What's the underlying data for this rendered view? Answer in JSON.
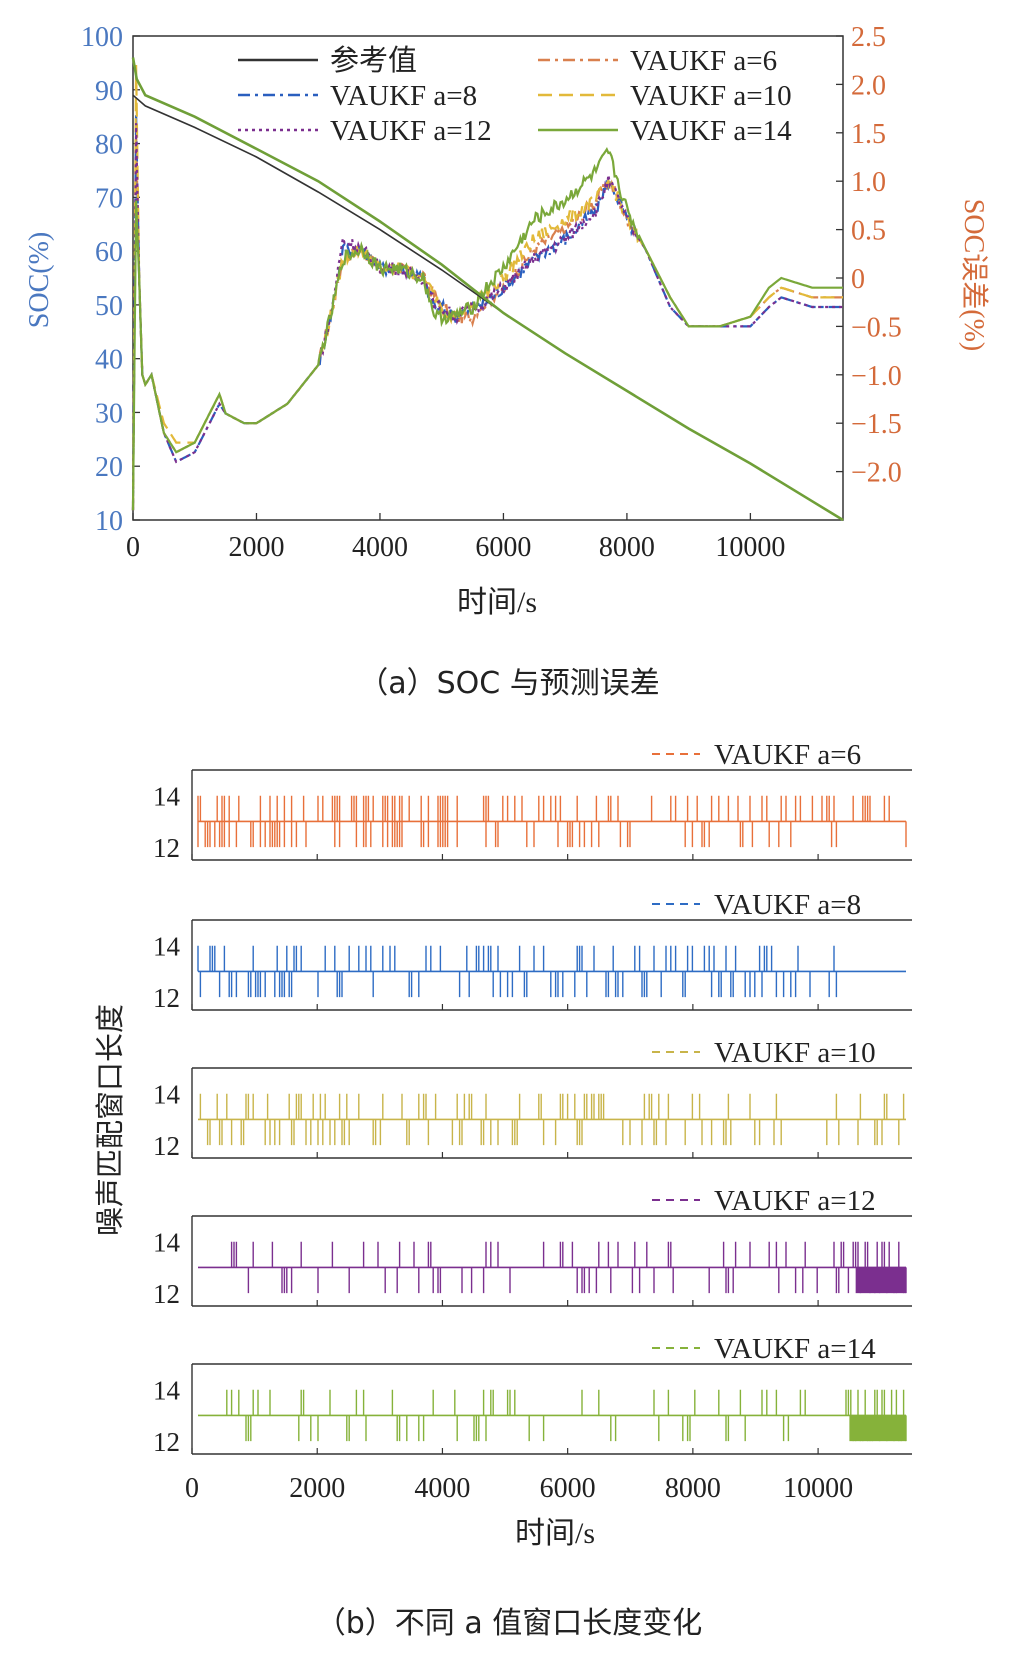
{
  "figure": {
    "caption_a": "（a）SOC 与预测误差",
    "caption_b": "（b）不同 a 值窗口长度变化"
  },
  "chart_data": [
    {
      "type": "line",
      "xlabel": "时间/s",
      "ylabel": "SOC(%)",
      "y2label": "SOC误差(%)",
      "xlim": [
        0,
        11500
      ],
      "ylim": [
        10,
        100
      ],
      "y2lim": [
        -2.5,
        2.5
      ],
      "xticks": [
        "0",
        "2000",
        "4000",
        "6000",
        "8000",
        "10000"
      ],
      "yticks": [
        "10",
        "20",
        "30",
        "40",
        "50",
        "60",
        "70",
        "80",
        "90",
        "100"
      ],
      "y2ticks": [
        "-2.0",
        "-1.5",
        "-1.0",
        "-0.5",
        "0",
        "0.5",
        "1.0",
        "1.5",
        "2.0",
        "2.5"
      ],
      "legend": [
        {
          "label": "参考值",
          "color": "#333333",
          "dash": "solid"
        },
        {
          "label": "VAUKF a=6",
          "color": "#d9804e",
          "dash": "dashdot"
        },
        {
          "label": "VAUKF a=8",
          "color": "#2a5fbf",
          "dash": "dashdot"
        },
        {
          "label": "VAUKF a=10",
          "color": "#e2b93a",
          "dash": "dashed"
        },
        {
          "label": "VAUKF a=12",
          "color": "#7b2f8f",
          "dash": "dotted"
        },
        {
          "label": "VAUKF a=14",
          "color": "#7aa83a",
          "dash": "solid"
        }
      ],
      "soc_series": {
        "reference": {
          "x": [
            0,
            200,
            1000,
            2000,
            3000,
            4000,
            5000,
            6000,
            7000,
            8000,
            9000,
            10000,
            11000,
            11500
          ],
          "y": [
            89,
            87,
            83,
            77.5,
            71,
            64,
            56.5,
            48.5,
            41,
            34,
            27,
            20.5,
            13.5,
            10
          ]
        },
        "estimate": {
          "x": [
            0,
            60,
            200,
            1000,
            2000,
            3000,
            4000,
            5000,
            6000,
            7000,
            8000,
            9000,
            10000,
            11000,
            11500
          ],
          "y": [
            96,
            92,
            89,
            85,
            79,
            73,
            65.5,
            57.5,
            48.5,
            41,
            34,
            27,
            20.5,
            13.5,
            10
          ]
        }
      },
      "error_series": [
        {
          "name": "VAUKF a=6",
          "x": [
            0,
            50,
            100,
            150,
            200,
            300,
            500,
            700,
            1000,
            1400,
            1500,
            1800,
            2000,
            2500,
            3000,
            3200,
            3400,
            3700,
            4000,
            4300,
            4700,
            4900,
            5000,
            5200,
            5500,
            5600,
            6000,
            6500,
            7000,
            7500,
            7700,
            7800,
            8000,
            8300,
            8700,
            9000,
            9500,
            10000,
            10300,
            10500,
            11000,
            11500
          ],
          "y": [
            -2.4,
            1.5,
            0,
            -1.0,
            -1.1,
            -1.0,
            -1.6,
            -1.8,
            -1.7,
            -1.2,
            -1.4,
            -1.5,
            -1.5,
            -1.3,
            -0.9,
            -0.4,
            0.2,
            0.3,
            0.1,
            0.1,
            0,
            -0.2,
            -0.3,
            -0.4,
            -0.4,
            -0.3,
            -0.1,
            0.3,
            0.5,
            0.8,
            1.0,
            0.9,
            0.6,
            0.3,
            -0.2,
            -0.5,
            -0.5,
            -0.4,
            -0.2,
            -0.1,
            -0.2,
            -0.2
          ]
        },
        {
          "name": "VAUKF a=8",
          "x": [
            0,
            50,
            100,
            150,
            200,
            300,
            500,
            700,
            1000,
            1400,
            1500,
            1800,
            2000,
            2500,
            3000,
            3200,
            3400,
            3700,
            4000,
            4300,
            4700,
            4900,
            5000,
            5200,
            5500,
            5600,
            6000,
            6500,
            7000,
            7500,
            7700,
            7800,
            8000,
            8300,
            8700,
            9000,
            9500,
            10000,
            10300,
            10500,
            11000,
            11500
          ],
          "y": [
            -2.4,
            1.7,
            0,
            -1.0,
            -1.1,
            -1.0,
            -1.6,
            -1.9,
            -1.8,
            -1.3,
            -1.4,
            -1.5,
            -1.5,
            -1.3,
            -0.9,
            -0.4,
            0.3,
            0.3,
            0.1,
            0.1,
            0,
            -0.3,
            -0.3,
            -0.4,
            -0.3,
            -0.3,
            -0.1,
            0.2,
            0.4,
            0.7,
            1.0,
            0.9,
            0.6,
            0.3,
            -0.3,
            -0.5,
            -0.5,
            -0.5,
            -0.3,
            -0.2,
            -0.3,
            -0.3
          ]
        },
        {
          "name": "VAUKF a=10",
          "x": [
            0,
            50,
            100,
            150,
            200,
            300,
            500,
            700,
            1000,
            1400,
            1500,
            1800,
            2000,
            2500,
            3000,
            3200,
            3400,
            3700,
            4000,
            4300,
            4700,
            4900,
            5000,
            5200,
            5500,
            5600,
            6000,
            6500,
            7000,
            7500,
            7700,
            7800,
            8000,
            8300,
            8700,
            9000,
            9500,
            10000,
            10300,
            10500,
            11000,
            11500
          ],
          "y": [
            -2.4,
            2.2,
            0,
            -1.0,
            -1.1,
            -1.0,
            -1.5,
            -1.7,
            -1.7,
            -1.2,
            -1.4,
            -1.5,
            -1.5,
            -1.3,
            -0.9,
            -0.4,
            0.2,
            0.3,
            0.1,
            0.1,
            0,
            -0.2,
            -0.3,
            -0.4,
            -0.3,
            -0.2,
            0,
            0.4,
            0.6,
            0.8,
            1.0,
            0.9,
            0.6,
            0.3,
            -0.2,
            -0.5,
            -0.5,
            -0.4,
            -0.2,
            -0.1,
            -0.2,
            -0.2
          ]
        },
        {
          "name": "VAUKF a=12",
          "x": [
            0,
            50,
            100,
            150,
            200,
            300,
            500,
            700,
            1000,
            1400,
            1500,
            1800,
            2000,
            2500,
            3000,
            3200,
            3400,
            3700,
            4000,
            4300,
            4700,
            4900,
            5000,
            5200,
            5500,
            5600,
            6000,
            6500,
            7000,
            7500,
            7700,
            7800,
            8000,
            8300,
            8700,
            9000,
            9500,
            10000,
            10300,
            10500,
            11000,
            11500
          ],
          "y": [
            -2.4,
            1.6,
            0,
            -1.0,
            -1.1,
            -1.0,
            -1.6,
            -1.9,
            -1.8,
            -1.3,
            -1.4,
            -1.5,
            -1.5,
            -1.3,
            -0.9,
            -0.4,
            0.4,
            0.3,
            0.1,
            0.1,
            0,
            -0.3,
            -0.3,
            -0.4,
            -0.3,
            -0.3,
            -0.1,
            0.2,
            0.4,
            0.7,
            1.0,
            0.9,
            0.6,
            0.3,
            -0.3,
            -0.5,
            -0.5,
            -0.5,
            -0.3,
            -0.2,
            -0.3,
            -0.3
          ]
        },
        {
          "name": "VAUKF a=14",
          "x": [
            0,
            50,
            100,
            150,
            200,
            300,
            500,
            700,
            1000,
            1400,
            1500,
            1800,
            2000,
            2500,
            3000,
            3200,
            3400,
            3700,
            4000,
            4300,
            4700,
            4900,
            5000,
            5200,
            5500,
            5600,
            6000,
            6500,
            7000,
            7500,
            7700,
            7800,
            8000,
            8300,
            8700,
            9000,
            9500,
            10000,
            10300,
            10500,
            11000,
            11500
          ],
          "y": [
            -2.4,
            0.8,
            0,
            -1.0,
            -1.1,
            -1.0,
            -1.6,
            -1.8,
            -1.7,
            -1.2,
            -1.4,
            -1.5,
            -1.5,
            -1.3,
            -0.9,
            -0.4,
            0.2,
            0.3,
            0.1,
            0.1,
            0,
            -0.4,
            -0.4,
            -0.4,
            -0.3,
            -0.2,
            0.1,
            0.6,
            0.8,
            1.1,
            1.3,
            1.1,
            0.7,
            0.3,
            -0.2,
            -0.5,
            -0.5,
            -0.4,
            -0.1,
            0,
            -0.1,
            -0.1
          ]
        }
      ]
    },
    {
      "type": "line",
      "xlabel": "时间/s",
      "ylabel": "噪声匹配窗口长度",
      "xlim": [
        0,
        11500
      ],
      "ylim": [
        11.5,
        15
      ],
      "xticks": [
        "0",
        "2000",
        "4000",
        "6000",
        "8000",
        "10000"
      ],
      "yticks": [
        "12",
        "14"
      ],
      "panels": [
        {
          "name": "VAUKF a=6",
          "color": "#e8703a",
          "levels": [
            12,
            13,
            14
          ],
          "density": [
            0.55,
            0.55,
            0.55,
            0.55,
            0.55,
            0.5,
            0.5,
            0.45,
            0.45,
            0.45,
            0.35,
            0.3
          ]
        },
        {
          "name": "VAUKF a=8",
          "color": "#2e6cc4",
          "levels": [
            12,
            13,
            14
          ],
          "density": [
            0.5,
            0.5,
            0.5,
            0.45,
            0.45,
            0.45,
            0.45,
            0.4,
            0.4,
            0.35,
            0.25,
            0.15
          ]
        },
        {
          "name": "VAUKF a=10",
          "color": "#c8b44a",
          "levels": [
            12,
            13,
            14
          ],
          "density": [
            0.4,
            0.4,
            0.4,
            0.35,
            0.35,
            0.35,
            0.35,
            0.35,
            0.35,
            0.35,
            0.25,
            0.2
          ]
        },
        {
          "name": "VAUKF a=12",
          "color": "#7b2f8f",
          "levels": [
            12,
            13,
            14
          ],
          "density": [
            0.28,
            0.28,
            0.3,
            0.3,
            0.3,
            0.3,
            0.3,
            0.3,
            0.28,
            0.28,
            0.3,
            0.85
          ]
        },
        {
          "name": "VAUKF a=14",
          "color": "#86b23a",
          "levels": [
            12,
            13,
            14
          ],
          "density": [
            0.22,
            0.22,
            0.22,
            0.22,
            0.22,
            0.22,
            0.22,
            0.22,
            0.22,
            0.22,
            0.2,
            0.95
          ]
        }
      ]
    }
  ]
}
